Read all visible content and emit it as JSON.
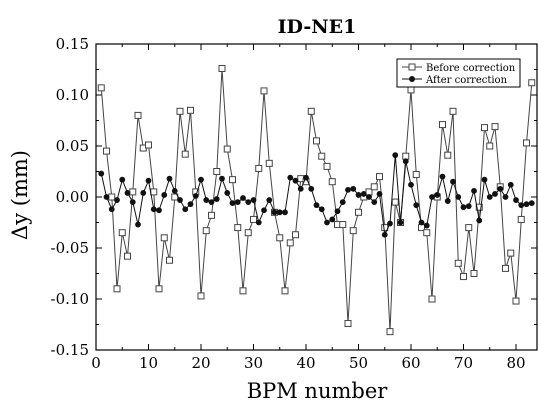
{
  "chart_data": {
    "type": "line",
    "title": "ID-NE1",
    "xlabel": "BPM number",
    "ylabel": "Δy (mm)",
    "xlim": [
      0,
      84
    ],
    "ylim": [
      -0.15,
      0.15
    ],
    "x_ticks": [
      0,
      10,
      20,
      30,
      40,
      50,
      60,
      70,
      80
    ],
    "x_tick_labels": [
      "0",
      "10",
      "20",
      "30",
      "40",
      "50",
      "60",
      "70",
      "80"
    ],
    "y_ticks": [
      -0.15,
      -0.1,
      -0.05,
      0.0,
      0.05,
      0.1,
      0.15
    ],
    "y_tick_labels": [
      "-0.15",
      "-0.10",
      "-0.05",
      "0.00",
      "0.05",
      "0.10",
      "0.15"
    ],
    "grid": false,
    "legend_position": "top-right",
    "series": [
      {
        "name": "Before correction",
        "marker": "open-square",
        "color": "#444444",
        "x": [
          1,
          2,
          3,
          4,
          5,
          6,
          7,
          8,
          9,
          10,
          11,
          12,
          13,
          14,
          15,
          16,
          17,
          18,
          19,
          20,
          21,
          22,
          23,
          24,
          25,
          26,
          27,
          28,
          29,
          30,
          31,
          32,
          33,
          34,
          35,
          36,
          37,
          38,
          39,
          40,
          41,
          42,
          43,
          44,
          45,
          46,
          47,
          48,
          49,
          50,
          51,
          52,
          53,
          54,
          55,
          56,
          57,
          58,
          59,
          60,
          61,
          62,
          63,
          64,
          65,
          66,
          67,
          68,
          69,
          70,
          71,
          72,
          73,
          74,
          75,
          76,
          77,
          78,
          79,
          80,
          81,
          82,
          83
        ],
        "values": [
          0.107,
          0.045,
          0.0,
          -0.09,
          -0.035,
          -0.058,
          0.005,
          0.08,
          0.048,
          0.051,
          0.005,
          -0.09,
          -0.04,
          -0.062,
          0.0,
          0.084,
          0.042,
          0.085,
          0.005,
          -0.097,
          -0.033,
          -0.018,
          0.025,
          0.126,
          0.047,
          0.017,
          -0.03,
          -0.092,
          -0.035,
          -0.022,
          0.028,
          0.104,
          0.033,
          -0.015,
          -0.04,
          -0.092,
          -0.045,
          -0.037,
          0.018,
          0.015,
          0.084,
          0.055,
          0.04,
          0.03,
          0.015,
          -0.027,
          -0.027,
          -0.124,
          -0.033,
          -0.015,
          0.0,
          0.005,
          0.01,
          0.02,
          -0.03,
          -0.132,
          -0.005,
          -0.025,
          0.04,
          0.105,
          0.022,
          -0.03,
          -0.035,
          -0.1,
          0.0,
          0.071,
          0.041,
          0.084,
          -0.065,
          -0.078,
          -0.03,
          -0.075,
          -0.01,
          0.068,
          0.05,
          0.069,
          0.01,
          -0.07,
          -0.055,
          -0.102,
          -0.022,
          0.053,
          0.112
        ]
      },
      {
        "name": "After correction",
        "marker": "filled-circle",
        "color": "#111111",
        "x": [
          1,
          2,
          3,
          4,
          5,
          6,
          7,
          8,
          9,
          10,
          11,
          12,
          13,
          14,
          15,
          16,
          17,
          18,
          19,
          20,
          21,
          22,
          23,
          24,
          25,
          26,
          27,
          28,
          29,
          30,
          31,
          32,
          33,
          34,
          35,
          36,
          37,
          38,
          39,
          40,
          41,
          42,
          43,
          44,
          45,
          46,
          47,
          48,
          49,
          50,
          51,
          52,
          53,
          54,
          55,
          56,
          57,
          58,
          59,
          60,
          61,
          62,
          63,
          64,
          65,
          66,
          67,
          68,
          69,
          70,
          71,
          72,
          73,
          74,
          75,
          76,
          77,
          78,
          79,
          80,
          81,
          82,
          83
        ],
        "values": [
          0.023,
          0.0,
          -0.012,
          -0.003,
          0.017,
          0.004,
          -0.005,
          -0.027,
          0.004,
          0.016,
          -0.012,
          -0.013,
          0.002,
          0.018,
          0.006,
          -0.003,
          -0.012,
          -0.007,
          0.001,
          0.017,
          -0.003,
          -0.005,
          -0.002,
          0.018,
          0.004,
          -0.006,
          -0.005,
          -0.001,
          -0.005,
          -0.003,
          -0.025,
          -0.013,
          -0.003,
          -0.015,
          -0.015,
          -0.015,
          0.019,
          0.016,
          0.008,
          0.019,
          0.008,
          -0.008,
          -0.012,
          -0.025,
          -0.022,
          -0.014,
          -0.005,
          0.007,
          0.008,
          0.002,
          0.003,
          0.0,
          -0.005,
          0.003,
          -0.037,
          -0.026,
          0.041,
          -0.025,
          0.035,
          0.012,
          -0.008,
          -0.025,
          -0.028,
          0.0,
          0.002,
          0.02,
          -0.004,
          0.015,
          0.0,
          -0.01,
          -0.009,
          0.006,
          -0.023,
          0.017,
          0.0,
          0.003,
          0.008,
          0.0,
          0.012,
          -0.003,
          -0.008,
          -0.007,
          -0.006
        ]
      }
    ]
  }
}
